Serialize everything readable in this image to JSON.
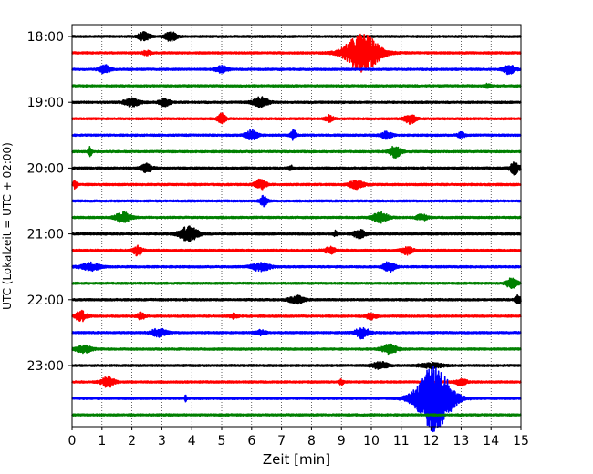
{
  "chart_data": {
    "type": "line",
    "title": "",
    "xlabel": "Zeit  [min]",
    "ylabel": "UTC (Lokalzeit = UTC + 02:00)",
    "xlim": [
      0,
      15
    ],
    "x_ticks": [
      "0",
      "1",
      "2",
      "3",
      "4",
      "5",
      "6",
      "7",
      "8",
      "9",
      "10",
      "11",
      "12",
      "13",
      "14",
      "15"
    ],
    "y_ticks": [
      "18:00",
      "19:00",
      "20:00",
      "21:00",
      "22:00",
      "23:00"
    ],
    "grid": "vertical-dotted",
    "trace_interval_min": 15,
    "trace_colors": [
      "#000000",
      "#ff0000",
      "#0000ff",
      "#008000"
    ],
    "traces": [
      {
        "start": "18:00",
        "color": "#000000",
        "events": [
          {
            "t": 2.4,
            "amp": 0.35,
            "w": 0.3
          },
          {
            "t": 3.3,
            "amp": 0.4,
            "w": 0.3
          }
        ]
      },
      {
        "start": "18:15",
        "color": "#ff0000",
        "events": [
          {
            "t": 9.7,
            "amp": 1.7,
            "w": 0.9
          },
          {
            "t": 2.5,
            "amp": 0.2,
            "w": 0.2
          }
        ]
      },
      {
        "start": "18:30",
        "color": "#0000ff",
        "events": [
          {
            "t": 1.1,
            "amp": 0.35,
            "w": 0.3
          },
          {
            "t": 5.0,
            "amp": 0.3,
            "w": 0.3
          },
          {
            "t": 14.6,
            "amp": 0.4,
            "w": 0.3
          }
        ]
      },
      {
        "start": "18:45",
        "color": "#008000",
        "events": [
          {
            "t": 13.9,
            "amp": 0.15,
            "w": 0.2
          }
        ]
      },
      {
        "start": "19:00",
        "color": "#000000",
        "events": [
          {
            "t": 2.0,
            "amp": 0.35,
            "w": 0.4
          },
          {
            "t": 3.1,
            "amp": 0.3,
            "w": 0.3
          },
          {
            "t": 6.3,
            "amp": 0.45,
            "w": 0.4
          }
        ]
      },
      {
        "start": "19:15",
        "color": "#ff0000",
        "events": [
          {
            "t": 5.0,
            "amp": 0.45,
            "w": 0.2
          },
          {
            "t": 8.6,
            "amp": 0.3,
            "w": 0.2
          },
          {
            "t": 11.3,
            "amp": 0.4,
            "w": 0.3
          }
        ]
      },
      {
        "start": "19:30",
        "color": "#0000ff",
        "events": [
          {
            "t": 6.0,
            "amp": 0.45,
            "w": 0.3
          },
          {
            "t": 7.4,
            "amp": 0.45,
            "w": 0.15
          },
          {
            "t": 10.5,
            "amp": 0.3,
            "w": 0.3
          },
          {
            "t": 13.0,
            "amp": 0.25,
            "w": 0.2
          }
        ]
      },
      {
        "start": "19:45",
        "color": "#008000",
        "events": [
          {
            "t": 0.6,
            "amp": 0.4,
            "w": 0.1
          },
          {
            "t": 10.8,
            "amp": 0.5,
            "w": 0.3
          }
        ]
      },
      {
        "start": "20:00",
        "color": "#000000",
        "events": [
          {
            "t": 2.5,
            "amp": 0.4,
            "w": 0.3
          },
          {
            "t": 7.3,
            "amp": 0.25,
            "w": 0.1
          },
          {
            "t": 14.8,
            "amp": 0.55,
            "w": 0.25
          }
        ]
      },
      {
        "start": "20:15",
        "color": "#ff0000",
        "events": [
          {
            "t": 0.1,
            "amp": 0.35,
            "w": 0.1
          },
          {
            "t": 6.3,
            "amp": 0.45,
            "w": 0.3
          },
          {
            "t": 9.5,
            "amp": 0.35,
            "w": 0.4
          }
        ]
      },
      {
        "start": "20:30",
        "color": "#0000ff",
        "events": [
          {
            "t": 6.4,
            "amp": 0.45,
            "w": 0.2
          }
        ]
      },
      {
        "start": "20:45",
        "color": "#008000",
        "events": [
          {
            "t": 1.7,
            "amp": 0.45,
            "w": 0.4
          },
          {
            "t": 10.3,
            "amp": 0.45,
            "w": 0.4
          },
          {
            "t": 11.7,
            "amp": 0.25,
            "w": 0.3
          }
        ]
      },
      {
        "start": "21:00",
        "color": "#000000",
        "events": [
          {
            "t": 3.9,
            "amp": 0.65,
            "w": 0.5
          },
          {
            "t": 9.6,
            "amp": 0.4,
            "w": 0.3
          },
          {
            "t": 8.8,
            "amp": 0.25,
            "w": 0.1
          }
        ]
      },
      {
        "start": "21:15",
        "color": "#ff0000",
        "events": [
          {
            "t": 2.2,
            "amp": 0.45,
            "w": 0.25
          },
          {
            "t": 8.6,
            "amp": 0.3,
            "w": 0.3
          },
          {
            "t": 11.2,
            "amp": 0.35,
            "w": 0.3
          }
        ]
      },
      {
        "start": "21:30",
        "color": "#0000ff",
        "events": [
          {
            "t": 0.6,
            "amp": 0.35,
            "w": 0.5
          },
          {
            "t": 6.3,
            "amp": 0.35,
            "w": 0.5
          },
          {
            "t": 10.6,
            "amp": 0.45,
            "w": 0.3
          }
        ]
      },
      {
        "start": "21:45",
        "color": "#008000",
        "events": [
          {
            "t": 14.7,
            "amp": 0.45,
            "w": 0.3
          }
        ]
      },
      {
        "start": "22:00",
        "color": "#000000",
        "events": [
          {
            "t": 7.5,
            "amp": 0.35,
            "w": 0.4
          },
          {
            "t": 14.9,
            "amp": 0.35,
            "w": 0.15
          }
        ]
      },
      {
        "start": "22:15",
        "color": "#ff0000",
        "events": [
          {
            "t": 0.3,
            "amp": 0.45,
            "w": 0.3
          },
          {
            "t": 2.3,
            "amp": 0.3,
            "w": 0.2
          },
          {
            "t": 5.4,
            "amp": 0.2,
            "w": 0.2
          },
          {
            "t": 10.0,
            "amp": 0.25,
            "w": 0.3
          }
        ]
      },
      {
        "start": "22:30",
        "color": "#0000ff",
        "events": [
          {
            "t": 2.9,
            "amp": 0.35,
            "w": 0.4
          },
          {
            "t": 9.7,
            "amp": 0.5,
            "w": 0.35
          },
          {
            "t": 6.3,
            "amp": 0.2,
            "w": 0.3
          }
        ]
      },
      {
        "start": "22:45",
        "color": "#008000",
        "events": [
          {
            "t": 0.4,
            "amp": 0.35,
            "w": 0.4
          },
          {
            "t": 10.6,
            "amp": 0.4,
            "w": 0.4
          }
        ]
      },
      {
        "start": "23:00",
        "color": "#000000",
        "events": [
          {
            "t": 10.3,
            "amp": 0.3,
            "w": 0.4
          },
          {
            "t": 12.0,
            "amp": 0.2,
            "w": 0.6
          }
        ]
      },
      {
        "start": "23:15",
        "color": "#ff0000",
        "events": [
          {
            "t": 1.2,
            "amp": 0.45,
            "w": 0.35
          },
          {
            "t": 9.0,
            "amp": 0.3,
            "w": 0.1
          },
          {
            "t": 13.0,
            "amp": 0.3,
            "w": 0.3
          }
        ]
      },
      {
        "start": "23:30",
        "color": "#0000ff",
        "events": [
          {
            "t": 12.1,
            "amp": 3.0,
            "w": 0.9
          },
          {
            "t": 3.8,
            "amp": 0.3,
            "w": 0.05
          }
        ]
      },
      {
        "start": "23:45",
        "color": "#008000",
        "events": []
      }
    ]
  }
}
